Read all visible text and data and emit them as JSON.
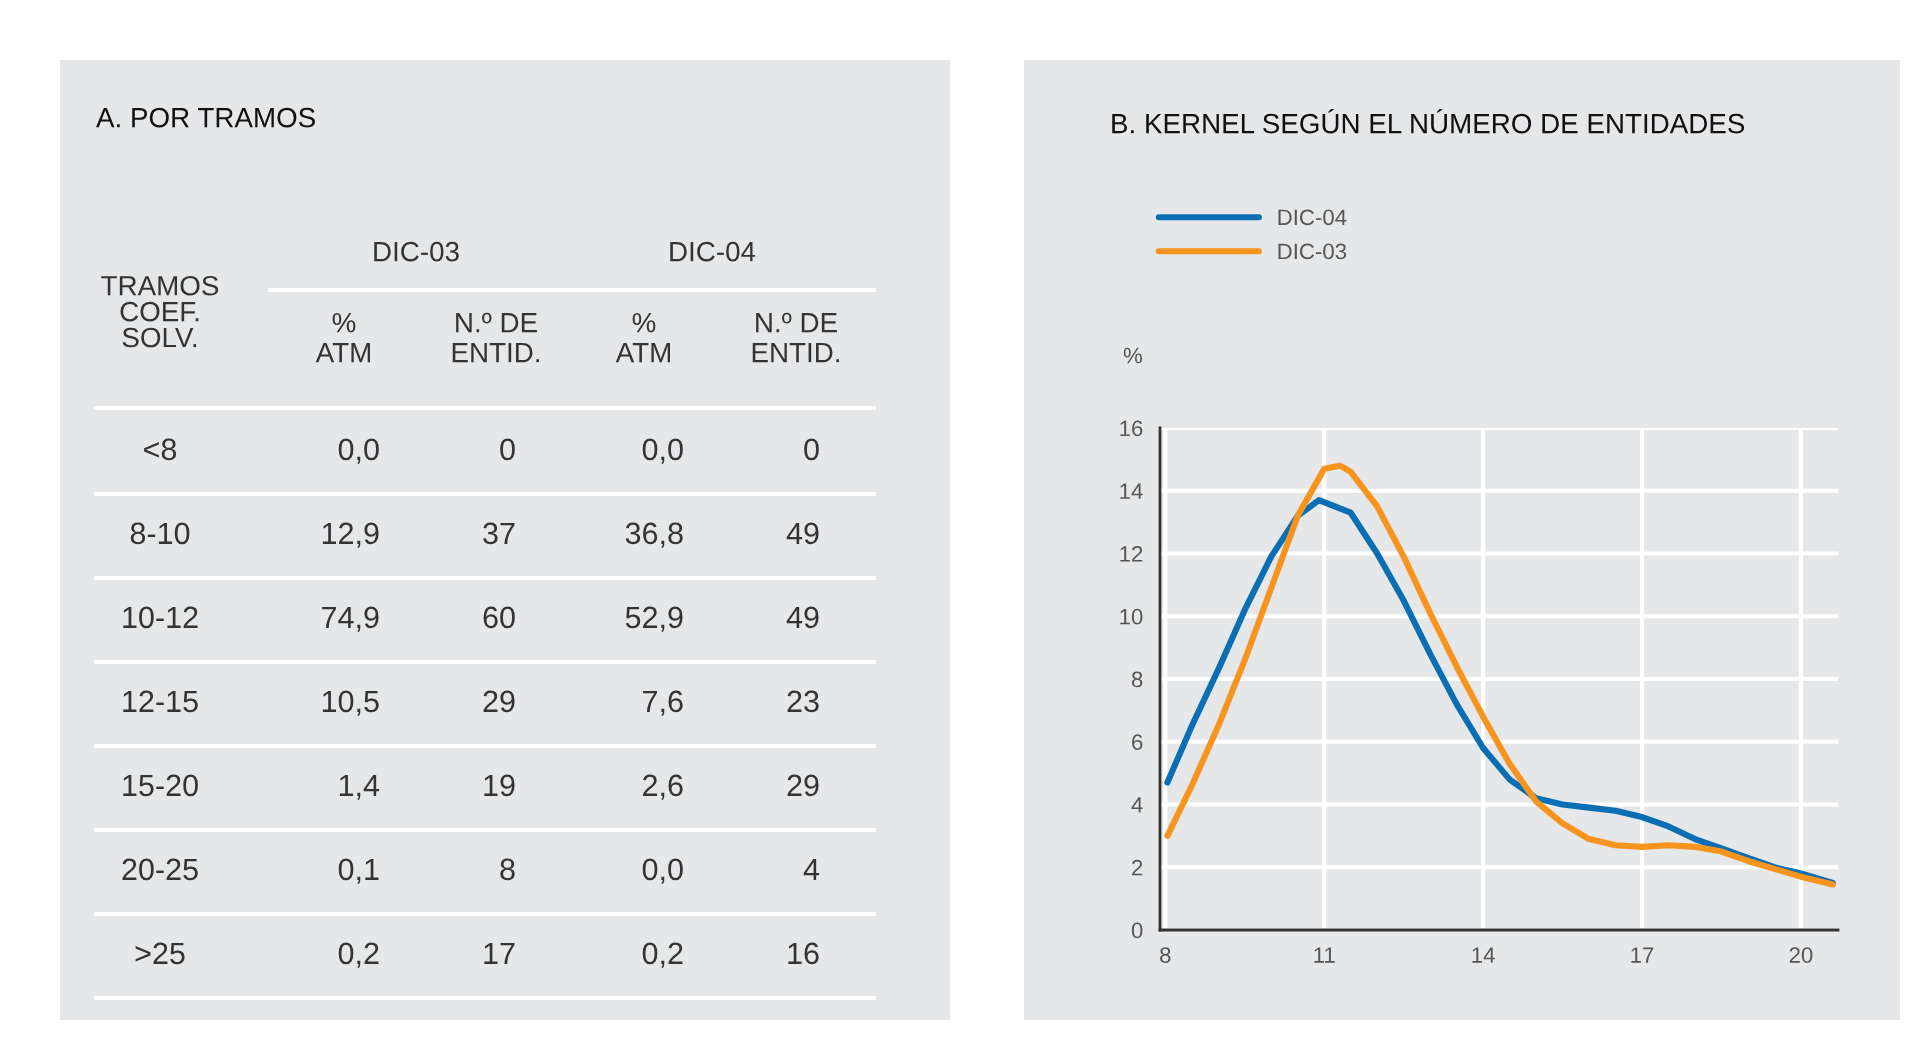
{
  "chart_data": [
    {
      "type": "other",
      "title": "A. POR TRAMOS",
      "annotations": [
        "TRAMOS\nCOEF.\nSOLV.",
        "DIC-03",
        "DIC-04",
        "%\nATM",
        "N.º DE\nENTID.",
        "%\nATM",
        "N.º DE\nENTID.",
        "<8",
        "0,0",
        "0",
        "0,0",
        "0",
        "8-10",
        "12,9",
        "37",
        "36,8",
        "49",
        "10-12",
        "74,9",
        "60",
        "52,9",
        "49",
        "12-15",
        "10,5",
        "29",
        "7,6",
        "23",
        "15-20",
        "1,4",
        "19",
        "2,6",
        "29",
        "20-25",
        "0,1",
        "8",
        "0,0",
        "4",
        ">25",
        "0,2",
        "17",
        "0,2",
        "16"
      ]
    },
    {
      "type": "line",
      "title": "B. KERNEL SEGÚN EL NÚMERO DE ENTIDADES",
      "ylabel": "%",
      "xlim": [
        7.9,
        20.7
      ],
      "ylim": [
        0,
        16
      ],
      "xticks": [
        8,
        11,
        14,
        17,
        20
      ],
      "yticks": [
        0,
        2,
        4,
        6,
        8,
        10,
        12,
        14,
        16
      ],
      "grid": true,
      "legend": "top left",
      "marker": "none",
      "line_style": "solid",
      "series": [
        {
          "name": "DIC-04",
          "color": "#0a6eb4",
          "x": [
            8.04,
            8.5,
            9,
            9.5,
            10,
            10.5,
            10.9,
            11.5,
            12,
            12.5,
            13,
            13.5,
            14,
            14.5,
            15,
            15.5,
            16,
            16.5,
            17,
            17.5,
            18,
            18.5,
            19,
            19.5,
            20,
            20.6
          ],
          "values": [
            4.7,
            6.5,
            8.3,
            10.2,
            11.9,
            13.2,
            13.7,
            13.3,
            12.0,
            10.5,
            8.8,
            7.2,
            5.8,
            4.8,
            4.2,
            4.0,
            3.9,
            3.8,
            3.6,
            3.3,
            2.9,
            2.6,
            2.3,
            2.0,
            1.8,
            1.5
          ]
        },
        {
          "name": "DIC-03",
          "color": "#f7941d",
          "x": [
            8.04,
            8.5,
            9,
            9.5,
            10,
            10.5,
            11,
            11.3,
            11.5,
            12,
            12.5,
            13,
            13.5,
            14,
            14.5,
            15,
            15.5,
            16,
            16.5,
            17,
            17.5,
            18,
            18.5,
            19,
            19.5,
            20,
            20.6
          ],
          "values": [
            3.0,
            4.6,
            6.5,
            8.6,
            10.9,
            13.2,
            14.7,
            14.8,
            14.6,
            13.5,
            11.9,
            10.1,
            8.4,
            6.8,
            5.3,
            4.1,
            3.4,
            2.9,
            2.7,
            2.65,
            2.7,
            2.65,
            2.5,
            2.2,
            1.95,
            1.7,
            1.45
          ]
        }
      ]
    }
  ]
}
